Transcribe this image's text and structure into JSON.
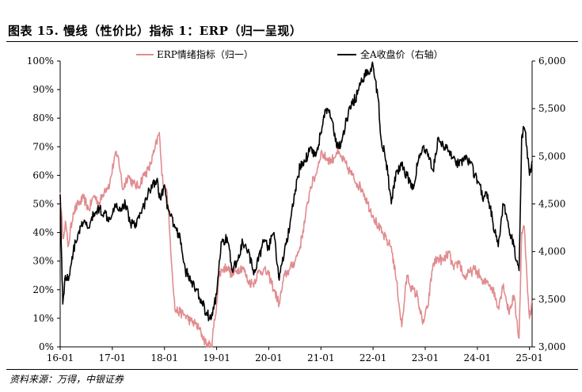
{
  "figure": {
    "title": "图表 15. 慢线（性价比）指标 1：ERP（归一呈现）",
    "source": "资料来源：万得，中银证券"
  },
  "colors": {
    "erp": "#e08c8f",
    "index": "#000000",
    "axis": "#000000"
  },
  "chart_data": {
    "type": "line",
    "xlabel": "",
    "ylabel_left": "",
    "ylabel_right": "",
    "x_ticks": [
      "16-01",
      "17-01",
      "18-01",
      "19-01",
      "20-01",
      "21-01",
      "22-01",
      "23-01",
      "24-01",
      "25-01"
    ],
    "x_range": [
      2016.0,
      2025.05
    ],
    "y_left": {
      "ticks": [
        "0%",
        "10%",
        "20%",
        "30%",
        "40%",
        "50%",
        "60%",
        "70%",
        "80%",
        "90%",
        "100%"
      ],
      "min": 0,
      "max": 100
    },
    "y_right": {
      "ticks": [
        "3,000",
        "3,500",
        "4,000",
        "4,500",
        "5,000",
        "5,500",
        "6,000"
      ],
      "min": 3000,
      "max": 6000
    },
    "legend_position": "top",
    "series": [
      {
        "name": "ERP情绪指标（归一）",
        "axis": "left",
        "x": [
          2016.0,
          2016.05,
          2016.1,
          2016.15,
          2016.25,
          2016.35,
          2016.45,
          2016.55,
          2016.65,
          2016.75,
          2016.85,
          2016.95,
          2017.05,
          2017.12,
          2017.2,
          2017.3,
          2017.4,
          2017.5,
          2017.6,
          2017.7,
          2017.8,
          2017.9,
          2017.95,
          2018.0,
          2018.05,
          2018.1,
          2018.2,
          2018.3,
          2018.4,
          2018.5,
          2018.6,
          2018.7,
          2018.8,
          2018.9,
          2019.0,
          2019.05,
          2019.1,
          2019.2,
          2019.3,
          2019.4,
          2019.5,
          2019.6,
          2019.7,
          2019.8,
          2019.9,
          2020.0,
          2020.1,
          2020.2,
          2020.3,
          2020.4,
          2020.5,
          2020.6,
          2020.7,
          2020.8,
          2020.9,
          2021.0,
          2021.1,
          2021.2,
          2021.3,
          2021.4,
          2021.5,
          2021.6,
          2021.7,
          2021.8,
          2021.9,
          2022.0,
          2022.1,
          2022.2,
          2022.3,
          2022.35,
          2022.45,
          2022.55,
          2022.65,
          2022.75,
          2022.85,
          2022.95,
          2023.05,
          2023.15,
          2023.25,
          2023.35,
          2023.45,
          2023.55,
          2023.65,
          2023.75,
          2023.85,
          2023.95,
          2024.05,
          2024.1,
          2024.2,
          2024.3,
          2024.4,
          2024.5,
          2024.6,
          2024.7,
          2024.75,
          2024.8,
          2024.85,
          2024.9,
          2024.95,
          2025.0,
          2025.05
        ],
        "values": [
          54,
          38,
          44,
          35,
          47,
          50,
          52,
          48,
          53,
          50,
          55,
          57,
          67,
          66,
          55,
          60,
          57,
          56,
          60,
          62,
          68,
          75,
          60,
          56,
          54,
          40,
          13,
          12,
          11,
          9,
          8,
          5,
          1,
          0,
          15,
          25,
          27,
          28,
          25,
          27,
          28,
          23,
          22,
          26,
          27,
          25,
          20,
          15,
          25,
          27,
          30,
          35,
          45,
          56,
          60,
          68,
          66,
          65,
          68,
          66,
          63,
          60,
          57,
          55,
          50,
          46,
          42,
          39,
          36,
          35,
          23,
          7,
          25,
          20,
          18,
          8,
          14,
          29,
          31,
          30,
          33,
          27,
          30,
          24,
          26,
          27,
          25,
          22,
          23,
          20,
          14,
          22,
          12,
          18,
          10,
          3,
          40,
          42,
          25,
          10,
          16
        ]
      },
      {
        "name": "全A收盘价（右轴）",
        "axis": "right",
        "x": [
          2016.0,
          2016.03,
          2016.05,
          2016.1,
          2016.15,
          2016.25,
          2016.35,
          2016.45,
          2016.55,
          2016.65,
          2016.75,
          2016.85,
          2016.95,
          2017.05,
          2017.15,
          2017.25,
          2017.35,
          2017.45,
          2017.55,
          2017.65,
          2017.75,
          2017.85,
          2017.92,
          2018.0,
          2018.05,
          2018.1,
          2018.2,
          2018.3,
          2018.4,
          2018.5,
          2018.6,
          2018.7,
          2018.8,
          2018.9,
          2019.0,
          2019.05,
          2019.1,
          2019.2,
          2019.3,
          2019.4,
          2019.5,
          2019.6,
          2019.7,
          2019.8,
          2019.9,
          2020.0,
          2020.1,
          2020.2,
          2020.3,
          2020.4,
          2020.5,
          2020.6,
          2020.7,
          2020.8,
          2020.9,
          2021.0,
          2021.1,
          2021.2,
          2021.3,
          2021.4,
          2021.5,
          2021.6,
          2021.7,
          2021.8,
          2021.9,
          2022.0,
          2022.1,
          2022.15,
          2022.25,
          2022.35,
          2022.45,
          2022.55,
          2022.65,
          2022.75,
          2022.85,
          2022.95,
          2023.05,
          2023.15,
          2023.25,
          2023.35,
          2023.45,
          2023.55,
          2023.65,
          2023.75,
          2023.85,
          2023.95,
          2024.05,
          2024.1,
          2024.2,
          2024.3,
          2024.4,
          2024.5,
          2024.55,
          2024.6,
          2024.65,
          2024.7,
          2024.75,
          2024.8,
          2024.85,
          2024.9,
          2024.95,
          2025.0,
          2025.05
        ],
        "values": [
          4600,
          3900,
          3450,
          3750,
          3700,
          4000,
          4200,
          4300,
          4250,
          4400,
          4450,
          4400,
          4350,
          4500,
          4450,
          4500,
          4300,
          4300,
          4400,
          4550,
          4700,
          4750,
          4550,
          4700,
          4450,
          4400,
          4250,
          4150,
          3800,
          3700,
          3600,
          3500,
          3350,
          3300,
          3550,
          3900,
          4100,
          4150,
          3800,
          3900,
          4100,
          4000,
          3800,
          3900,
          4100,
          4050,
          4200,
          3700,
          4000,
          4250,
          4600,
          4900,
          4950,
          5100,
          5000,
          5250,
          5500,
          5400,
          5100,
          5150,
          5400,
          5550,
          5650,
          5800,
          5900,
          5950,
          5600,
          5200,
          4950,
          4500,
          4850,
          4900,
          4800,
          4650,
          4900,
          5100,
          5000,
          4850,
          5200,
          5100,
          5050,
          5000,
          4900,
          5000,
          4950,
          4800,
          4700,
          4550,
          4600,
          4300,
          4050,
          4500,
          4400,
          4250,
          4150,
          4050,
          3900,
          3800,
          5200,
          5300,
          5100,
          4800,
          4950
        ]
      }
    ]
  }
}
